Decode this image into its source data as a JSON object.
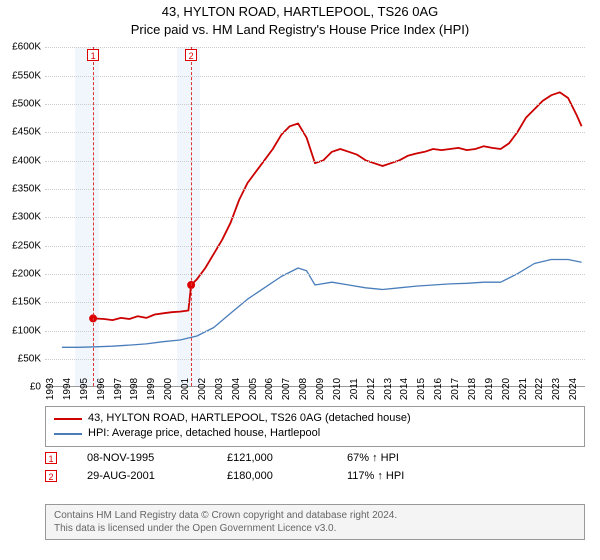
{
  "title": {
    "line1": "43, HYLTON ROAD, HARTLEPOOL, TS26 0AG",
    "line2": "Price paid vs. HM Land Registry's House Price Index (HPI)"
  },
  "chart": {
    "type": "line",
    "xlim": [
      1993,
      2025
    ],
    "ylim": [
      0,
      600
    ],
    "y_unit_prefix": "£",
    "y_unit_suffix": "K",
    "yticks": [
      0,
      50,
      100,
      150,
      200,
      250,
      300,
      350,
      400,
      450,
      500,
      550,
      600
    ],
    "xticks": [
      1993,
      1994,
      1995,
      1996,
      1997,
      1998,
      1999,
      2000,
      2001,
      2002,
      2003,
      2004,
      2005,
      2006,
      2007,
      2008,
      2009,
      2010,
      2011,
      2012,
      2013,
      2014,
      2015,
      2016,
      2017,
      2018,
      2019,
      2020,
      2021,
      2022,
      2023,
      2024
    ],
    "grid_color": "#cccccc",
    "background_color": "#ffffff",
    "shade_color": "#eaf2fb",
    "shade_ranges": [
      [
        1994.8,
        1996.2
      ],
      [
        2000.8,
        2002.2
      ]
    ],
    "dashed_vlines": [
      1995.85,
      2001.66
    ],
    "dash_color": "#d33",
    "marker_boxes": [
      {
        "x": 1995.85,
        "label": "1"
      },
      {
        "x": 2001.66,
        "label": "2"
      }
    ],
    "series": [
      {
        "name": "43, HYLTON ROAD, HARTLEPOOL, TS26 0AG (detached house)",
        "color": "#cc0000",
        "width": 1.8,
        "points": [
          [
            1995.85,
            121
          ],
          [
            1996.5,
            120
          ],
          [
            1997,
            118
          ],
          [
            1997.5,
            122
          ],
          [
            1998,
            120
          ],
          [
            1998.5,
            125
          ],
          [
            1999,
            122
          ],
          [
            1999.5,
            128
          ],
          [
            2000,
            130
          ],
          [
            2000.5,
            132
          ],
          [
            2001,
            133
          ],
          [
            2001.5,
            135
          ],
          [
            2001.66,
            180
          ],
          [
            2002,
            190
          ],
          [
            2002.5,
            210
          ],
          [
            2003,
            235
          ],
          [
            2003.5,
            260
          ],
          [
            2004,
            290
          ],
          [
            2004.5,
            330
          ],
          [
            2005,
            360
          ],
          [
            2005.5,
            380
          ],
          [
            2006,
            400
          ],
          [
            2006.5,
            420
          ],
          [
            2007,
            445
          ],
          [
            2007.5,
            460
          ],
          [
            2008,
            465
          ],
          [
            2008.5,
            440
          ],
          [
            2009,
            395
          ],
          [
            2009.5,
            400
          ],
          [
            2010,
            415
          ],
          [
            2010.5,
            420
          ],
          [
            2011,
            415
          ],
          [
            2011.5,
            410
          ],
          [
            2012,
            400
          ],
          [
            2012.5,
            395
          ],
          [
            2013,
            390
          ],
          [
            2013.5,
            395
          ],
          [
            2014,
            400
          ],
          [
            2014.5,
            408
          ],
          [
            2015,
            412
          ],
          [
            2015.5,
            415
          ],
          [
            2016,
            420
          ],
          [
            2016.5,
            418
          ],
          [
            2017,
            420
          ],
          [
            2017.5,
            422
          ],
          [
            2018,
            418
          ],
          [
            2018.5,
            420
          ],
          [
            2019,
            425
          ],
          [
            2019.5,
            422
          ],
          [
            2020,
            420
          ],
          [
            2020.5,
            430
          ],
          [
            2021,
            450
          ],
          [
            2021.5,
            475
          ],
          [
            2022,
            490
          ],
          [
            2022.5,
            505
          ],
          [
            2023,
            515
          ],
          [
            2023.5,
            520
          ],
          [
            2024,
            510
          ],
          [
            2024.5,
            480
          ],
          [
            2024.8,
            460
          ]
        ],
        "sale_points": [
          {
            "x": 1995.85,
            "y": 121
          },
          {
            "x": 2001.66,
            "y": 180
          }
        ]
      },
      {
        "name": "HPI: Average price, detached house, Hartlepool",
        "color": "#4a7ebb",
        "width": 1.3,
        "points": [
          [
            1994,
            70
          ],
          [
            1995,
            70
          ],
          [
            1996,
            71
          ],
          [
            1997,
            72
          ],
          [
            1998,
            74
          ],
          [
            1999,
            76
          ],
          [
            2000,
            80
          ],
          [
            2001,
            83
          ],
          [
            2002,
            90
          ],
          [
            2003,
            105
          ],
          [
            2004,
            130
          ],
          [
            2005,
            155
          ],
          [
            2006,
            175
          ],
          [
            2007,
            195
          ],
          [
            2008,
            210
          ],
          [
            2008.5,
            205
          ],
          [
            2009,
            180
          ],
          [
            2010,
            185
          ],
          [
            2011,
            180
          ],
          [
            2012,
            175
          ],
          [
            2013,
            172
          ],
          [
            2014,
            175
          ],
          [
            2015,
            178
          ],
          [
            2016,
            180
          ],
          [
            2017,
            182
          ],
          [
            2018,
            183
          ],
          [
            2019,
            185
          ],
          [
            2020,
            185
          ],
          [
            2021,
            200
          ],
          [
            2022,
            218
          ],
          [
            2023,
            225
          ],
          [
            2024,
            225
          ],
          [
            2024.8,
            220
          ]
        ]
      }
    ]
  },
  "legend": {
    "border_color": "#999"
  },
  "sales": [
    {
      "marker": "1",
      "date": "08-NOV-1995",
      "price": "£121,000",
      "pct": "67% ↑ HPI"
    },
    {
      "marker": "2",
      "date": "29-AUG-2001",
      "price": "£180,000",
      "pct": "117% ↑ HPI"
    }
  ],
  "footer": {
    "line1": "Contains HM Land Registry data © Crown copyright and database right 2024.",
    "line2": "This data is licensed under the Open Government Licence v3.0."
  }
}
